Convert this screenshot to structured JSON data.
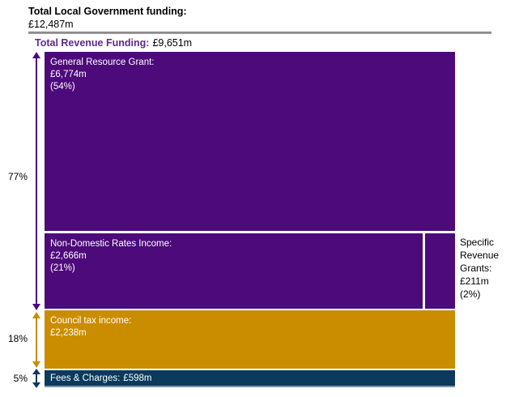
{
  "header": {
    "title_line1": "Total Local Government funding:",
    "title_line2": "£12,487m",
    "revenue_heading_label": "Total Revenue Funding:",
    "revenue_heading_value": "£9,651m"
  },
  "annotations": {
    "revenue_pct": "77%",
    "council_pct": "18%",
    "fees_pct": "5%"
  },
  "boxes": {
    "general": {
      "label": "General Resource Grant:",
      "value": "£6,774m",
      "pct": "(54%)"
    },
    "ndri": {
      "label": "Non-Domestic Rates Income:",
      "value": "£2,666m",
      "pct": "(21%)"
    },
    "specific": {
      "label": "Specific Revenue Grants:",
      "value": "£211m",
      "pct": "(2%)"
    },
    "council": {
      "label": "Council tax income:",
      "value": "£2,238m"
    },
    "fees": {
      "label": "Fees & Charges:",
      "value": "£598m"
    }
  },
  "colors": {
    "purple": "#4c0a7a",
    "gold": "#cb8d00",
    "navy": "#0b3a5b",
    "heading_purple": "#5b2a8c",
    "divider_gray": "#9b9b9b"
  },
  "chart_data": {
    "type": "treemap",
    "title": "Total Local Government funding: £12,487m",
    "total_value_gbp_m": 12487,
    "unit": "£m",
    "legend_position": "none",
    "groups": [
      {
        "name": "Total Revenue Funding",
        "value_gbp_m": 9651,
        "share_of_total": "77%",
        "color": "#4c0a7a",
        "children": [
          {
            "name": "General Resource Grant",
            "value_gbp_m": 6774,
            "share_of_total": "54%"
          },
          {
            "name": "Non-Domestic Rates Income",
            "value_gbp_m": 2666,
            "share_of_total": "21%"
          },
          {
            "name": "Specific Revenue Grants",
            "value_gbp_m": 211,
            "share_of_total": "2%"
          }
        ]
      },
      {
        "name": "Council tax income",
        "value_gbp_m": 2238,
        "share_of_total": "18%",
        "color": "#cb8d00"
      },
      {
        "name": "Fees & Charges",
        "value_gbp_m": 598,
        "share_of_total": "5%",
        "color": "#0b3a5b"
      }
    ]
  }
}
